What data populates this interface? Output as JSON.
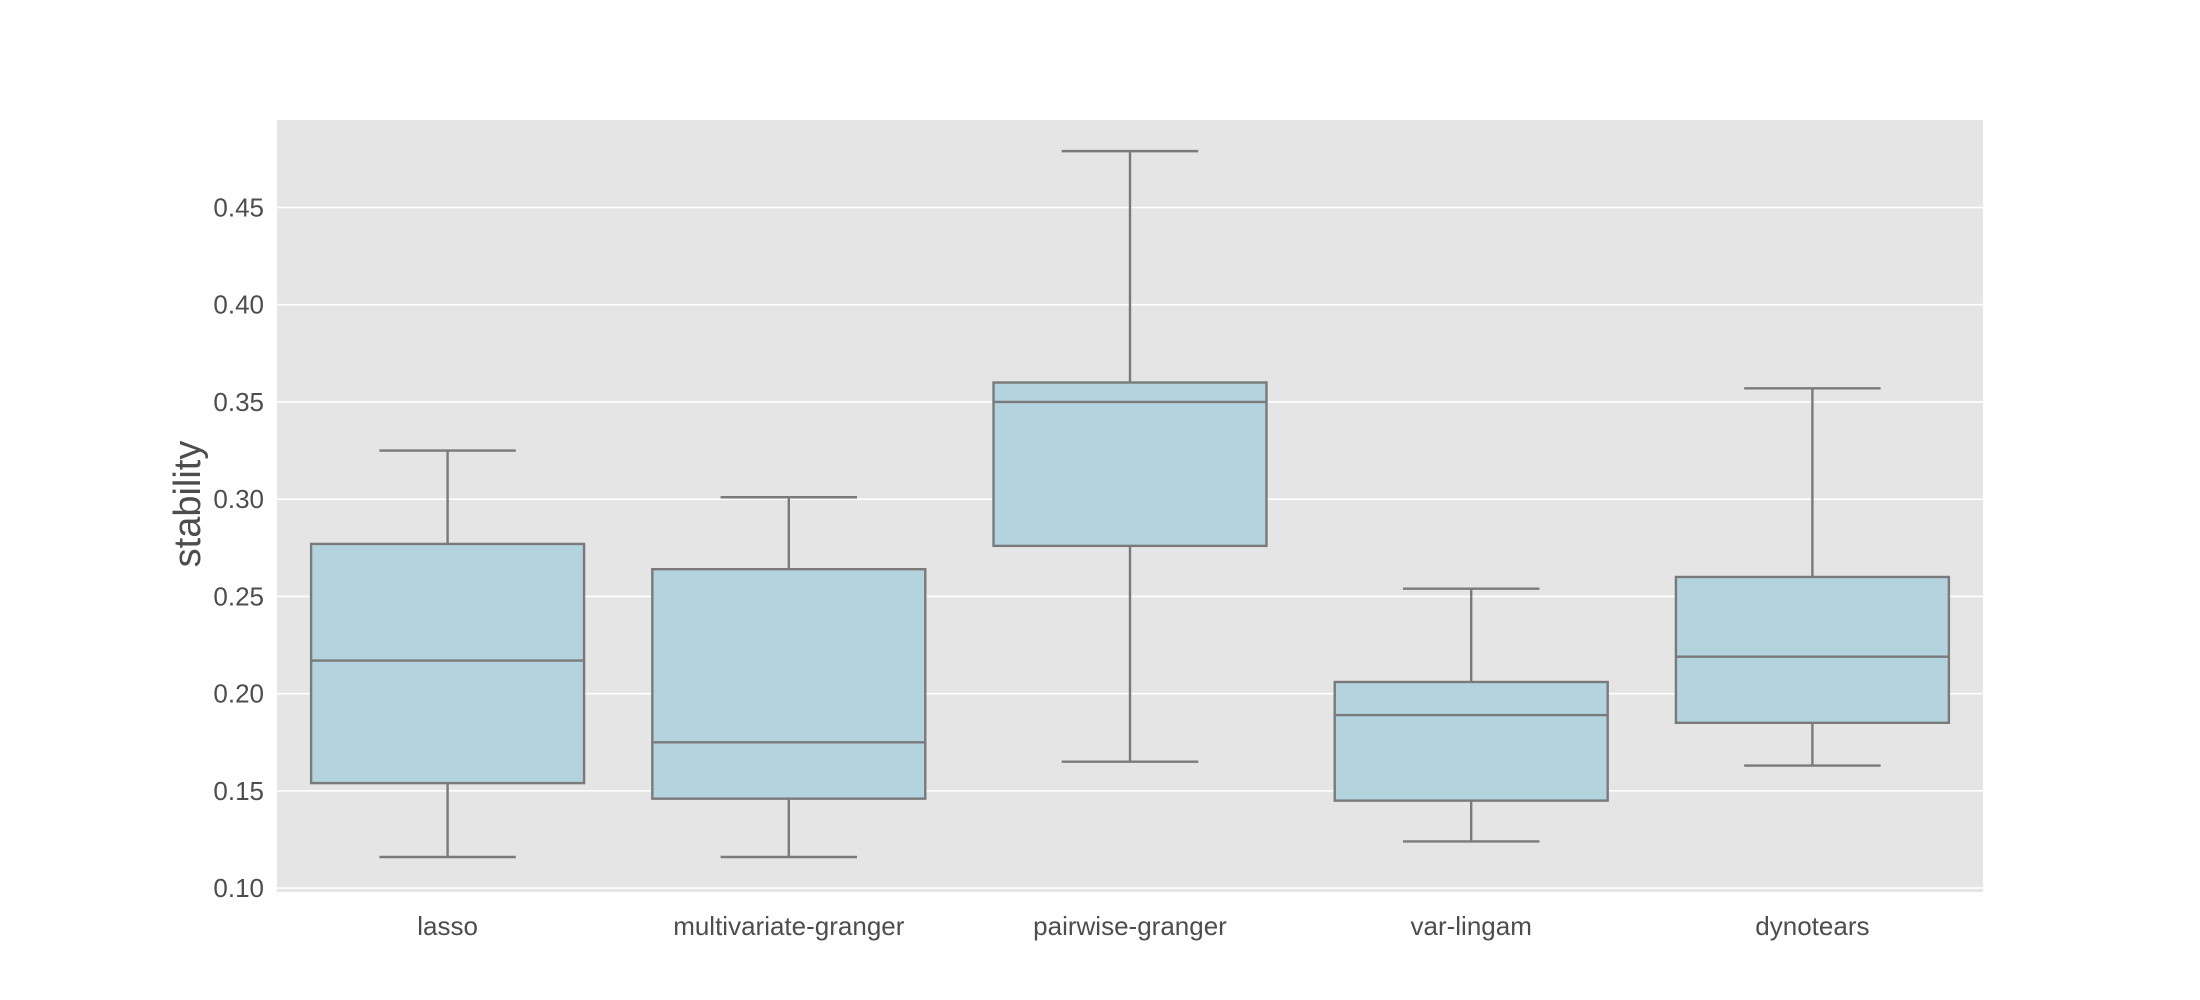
{
  "chart_data": {
    "type": "box",
    "title": "",
    "xlabel": "",
    "ylabel": "stability",
    "ylim": [
      0.098,
      0.495
    ],
    "yticks": [
      0.1,
      0.15,
      0.2,
      0.25,
      0.3,
      0.35,
      0.4,
      0.45
    ],
    "ytick_labels": [
      "0.10",
      "0.15",
      "0.20",
      "0.25",
      "0.30",
      "0.35",
      "0.40",
      "0.45"
    ],
    "grid": true,
    "categories": [
      "lasso",
      "multivariate-granger",
      "pairwise-granger",
      "var-lingam",
      "dynotears"
    ],
    "boxes": [
      {
        "name": "lasso",
        "whisker_low": 0.116,
        "q1": 0.154,
        "median": 0.217,
        "q3": 0.277,
        "whisker_high": 0.325
      },
      {
        "name": "multivariate-granger",
        "whisker_low": 0.116,
        "q1": 0.146,
        "median": 0.175,
        "q3": 0.264,
        "whisker_high": 0.301
      },
      {
        "name": "pairwise-granger",
        "whisker_low": 0.165,
        "q1": 0.276,
        "median": 0.35,
        "q3": 0.36,
        "whisker_high": 0.479
      },
      {
        "name": "var-lingam",
        "whisker_low": 0.124,
        "q1": 0.145,
        "median": 0.189,
        "q3": 0.206,
        "whisker_high": 0.254
      },
      {
        "name": "dynotears",
        "whisker_low": 0.163,
        "q1": 0.185,
        "median": 0.219,
        "q3": 0.26,
        "whisker_high": 0.357
      }
    ],
    "colors": {
      "plot_background": "#e5e5e5",
      "grid": "#ffffff",
      "box_fill": "#b3d4df",
      "box_edge": "#7a7a7a",
      "text": "#4d4d4d"
    }
  }
}
